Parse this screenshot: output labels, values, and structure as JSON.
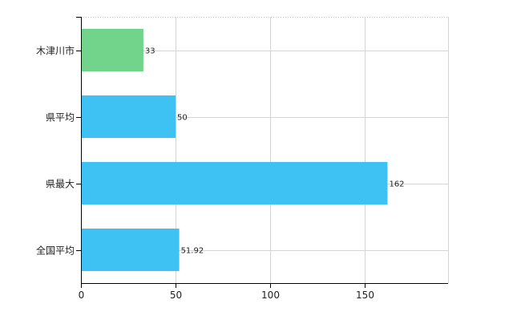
{
  "chart_data": {
    "type": "bar",
    "orientation": "horizontal",
    "categories": [
      "木津川市",
      "県平均",
      "県最大",
      "全国平均"
    ],
    "values": [
      33,
      50,
      162,
      51.92
    ],
    "value_labels": [
      "33",
      "50",
      "162",
      "51.92"
    ],
    "bar_colors": [
      "#72d38a",
      "#3ec1f3",
      "#3ec1f3",
      "#3ec1f3"
    ],
    "x_ticks": [
      0,
      50,
      100,
      150
    ],
    "x_tick_labels": [
      "0",
      "50",
      "100",
      "150"
    ],
    "xlim": [
      0,
      194
    ],
    "grid": true,
    "legend": "none"
  }
}
